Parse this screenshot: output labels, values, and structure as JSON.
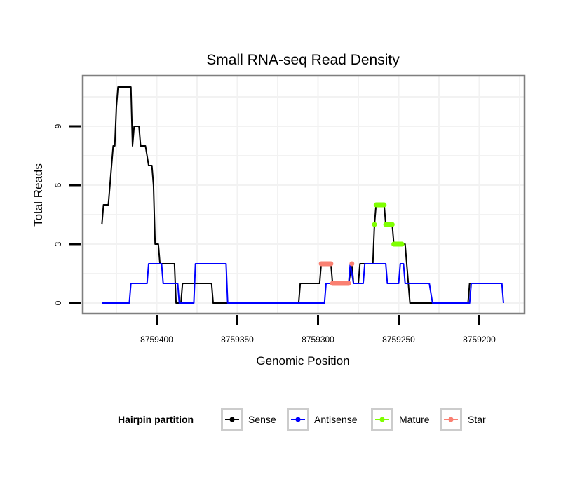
{
  "chart_data": {
    "type": "line",
    "title": "Small RNA-seq Read Density",
    "xlabel": "Genomic Position",
    "ylabel": "Total Reads",
    "x_reversed": true,
    "xlim": [
      8759450,
      8759185
    ],
    "ylim": [
      -0.5,
      11.5
    ],
    "xticks": [
      8759400,
      8759350,
      8759300,
      8759250,
      8759200
    ],
    "xtick_labels": [
      "8759400",
      "8759350",
      "8759300",
      "8759250",
      "8759200"
    ],
    "yticks": [
      0,
      3,
      6,
      9
    ],
    "ytick_labels": [
      "0",
      "3",
      "6",
      "9"
    ],
    "grid": true,
    "legend": {
      "title": "Hairpin partition",
      "placement": "bottom",
      "entries": [
        {
          "label": "Sense",
          "color": "#000000"
        },
        {
          "label": "Antisense",
          "color": "#0000ff"
        },
        {
          "label": "Mature",
          "color": "#7fff00"
        },
        {
          "label": "Star",
          "color": "#fa8072"
        }
      ]
    },
    "series": [
      {
        "name": "Sense",
        "color": "#000000",
        "points": [
          [
            8759434,
            4
          ],
          [
            8759433,
            5
          ],
          [
            8759430,
            5
          ],
          [
            8759429,
            6
          ],
          [
            8759427,
            8
          ],
          [
            8759426,
            8
          ],
          [
            8759425,
            10
          ],
          [
            8759424,
            11
          ],
          [
            8759416,
            11
          ],
          [
            8759415,
            8
          ],
          [
            8759414,
            9
          ],
          [
            8759411,
            9
          ],
          [
            8759410,
            8
          ],
          [
            8759407,
            8
          ],
          [
            8759405,
            7
          ],
          [
            8759403,
            7
          ],
          [
            8759402,
            6
          ],
          [
            8759401,
            3
          ],
          [
            8759399,
            3
          ],
          [
            8759398,
            2
          ],
          [
            8759389,
            2
          ],
          [
            8759388,
            0
          ],
          [
            8759385,
            0
          ],
          [
            8759384,
            1
          ],
          [
            8759366,
            1
          ],
          [
            8759365,
            0
          ],
          [
            8759312,
            0
          ],
          [
            8759311,
            1
          ],
          [
            8759299,
            1
          ],
          [
            8759298,
            2
          ],
          [
            8759292,
            2
          ],
          [
            8759291,
            1
          ],
          [
            8759281,
            1
          ],
          [
            8759279,
            2
          ],
          [
            8759278,
            1
          ],
          [
            8759275,
            1
          ],
          [
            8759274,
            2
          ],
          [
            8759266,
            2
          ],
          [
            8759265,
            4
          ],
          [
            8759264,
            5
          ],
          [
            8759259,
            5
          ],
          [
            8759258,
            4
          ],
          [
            8759254,
            4
          ],
          [
            8759253,
            3
          ],
          [
            8759246,
            3
          ],
          [
            8759243,
            0
          ],
          [
            8759207,
            0
          ],
          [
            8759206,
            1
          ],
          [
            8759186,
            1
          ]
        ]
      },
      {
        "name": "Antisense",
        "color": "#0000ff",
        "points": [
          [
            8759434,
            0
          ],
          [
            8759417,
            0
          ],
          [
            8759416,
            1
          ],
          [
            8759406,
            1
          ],
          [
            8759405,
            2
          ],
          [
            8759397,
            2
          ],
          [
            8759396,
            1
          ],
          [
            8759387,
            1
          ],
          [
            8759386,
            0
          ],
          [
            8759377,
            0
          ],
          [
            8759376,
            2
          ],
          [
            8759357,
            2
          ],
          [
            8759356,
            0
          ],
          [
            8759296,
            0
          ],
          [
            8759295,
            1
          ],
          [
            8759281,
            1
          ],
          [
            8759280,
            2
          ],
          [
            8759278,
            1
          ],
          [
            8759272,
            1
          ],
          [
            8759271,
            2
          ],
          [
            8759258,
            2
          ],
          [
            8759257,
            1
          ],
          [
            8759250,
            1
          ],
          [
            8759249,
            2
          ],
          [
            8759247,
            2
          ],
          [
            8759246,
            1
          ],
          [
            8759231,
            1
          ],
          [
            8759229,
            0
          ],
          [
            8759206,
            0
          ],
          [
            8759205,
            1
          ],
          [
            8759186,
            1
          ],
          [
            8759185,
            0
          ]
        ]
      },
      {
        "name": "Mature",
        "color": "#7fff00",
        "segments": [
          {
            "from": 8759265,
            "to": 8759265,
            "y": 4
          },
          {
            "from": 8759264,
            "to": 8759259,
            "y": 5
          },
          {
            "from": 8759258,
            "to": 8759254,
            "y": 4
          },
          {
            "from": 8759253,
            "to": 8759248,
            "y": 3
          }
        ]
      },
      {
        "name": "Star",
        "color": "#fa8072",
        "segments": [
          {
            "from": 8759298,
            "to": 8759292,
            "y": 2
          },
          {
            "from": 8759291,
            "to": 8759281,
            "y": 1
          },
          {
            "from": 8759279,
            "to": 8759279,
            "y": 2
          }
        ]
      }
    ]
  }
}
